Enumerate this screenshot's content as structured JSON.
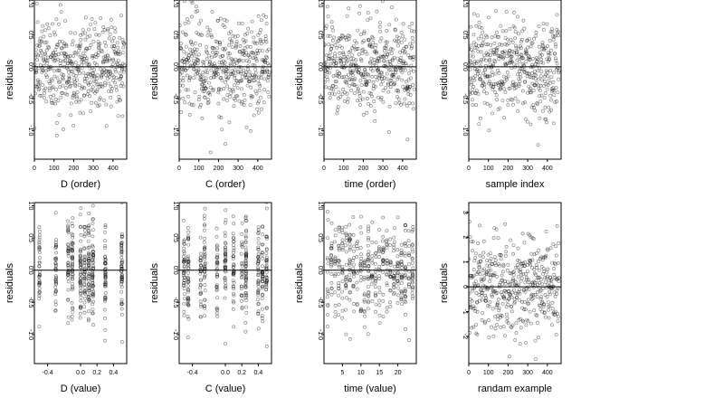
{
  "chart_data": [
    {
      "type": "scatter",
      "xlabel": "D (order)",
      "ylabel": "residuals",
      "x_range": [
        0,
        470
      ],
      "ylim": [
        -1.45,
        1.05
      ],
      "xticks": [
        0,
        100,
        200,
        300,
        400
      ],
      "xtick_labels": [
        "0",
        "100",
        "200",
        "300",
        "400"
      ],
      "yticks": [
        1.0,
        0.5,
        0.0,
        -0.5,
        -1.0
      ],
      "ytick_labels": [
        "1.0",
        "0.5",
        "0.0",
        "-0.5",
        "-1.0"
      ],
      "reference_line_y": 0,
      "n_points": 460,
      "y_spread": 0.38,
      "x_pattern": "index",
      "grid": false
    },
    {
      "type": "scatter",
      "xlabel": "C (order)",
      "ylabel": "residuals",
      "x_range": [
        0,
        470
      ],
      "ylim": [
        -1.45,
        1.05
      ],
      "xticks": [
        0,
        100,
        200,
        300,
        400
      ],
      "xtick_labels": [
        "0",
        "100",
        "200",
        "300",
        "400"
      ],
      "yticks": [
        1.0,
        0.5,
        0.0,
        -0.5,
        -1.0
      ],
      "ytick_labels": [
        "1.0",
        "0.5",
        "0.0",
        "-0.5",
        "-1.0"
      ],
      "reference_line_y": 0,
      "n_points": 460,
      "y_spread": 0.38,
      "x_pattern": "index",
      "grid": false
    },
    {
      "type": "scatter",
      "xlabel": "time (order)",
      "ylabel": "residuals",
      "x_range": [
        0,
        470
      ],
      "ylim": [
        -1.45,
        1.05
      ],
      "xticks": [
        0,
        100,
        200,
        300,
        400
      ],
      "xtick_labels": [
        "0",
        "100",
        "200",
        "300",
        "400"
      ],
      "yticks": [
        1.0,
        0.5,
        0.0,
        -0.5,
        -1.0
      ],
      "ytick_labels": [
        "1.0",
        "0.5",
        "0.0",
        "-0.5",
        "-1.0"
      ],
      "reference_line_y": 0,
      "n_points": 460,
      "y_spread": 0.38,
      "x_pattern": "index",
      "grid": false
    },
    {
      "type": "scatter",
      "xlabel": "sample index",
      "ylabel": "residuals",
      "x_range": [
        0,
        470
      ],
      "ylim": [
        -1.45,
        1.05
      ],
      "xticks": [
        0,
        100,
        200,
        300,
        400
      ],
      "xtick_labels": [
        "0",
        "100",
        "200",
        "300",
        "400"
      ],
      "yticks": [
        1.0,
        0.5,
        0.0,
        -0.5,
        -1.0
      ],
      "ytick_labels": [
        "1.0",
        "0.5",
        "0.0",
        "-0.5",
        "-1.0"
      ],
      "reference_line_y": 0,
      "n_points": 460,
      "y_spread": 0.38,
      "x_pattern": "index",
      "grid": false
    },
    {
      "type": "scatter",
      "xlabel": "D (value)",
      "ylabel": "residuals",
      "x_range": [
        -0.56,
        0.56
      ],
      "ylim": [
        -1.45,
        1.05
      ],
      "xticks": [
        -0.4,
        0.0,
        0.2,
        0.4
      ],
      "xtick_labels": [
        "-0.4",
        "0.0",
        "0.2",
        "0.4"
      ],
      "yticks": [
        1.0,
        0.5,
        0.0,
        -0.5,
        -1.0
      ],
      "ytick_labels": [
        "1.0",
        "0.5",
        "0.0",
        "-0.5",
        "-1.0"
      ],
      "reference_line_y": 0,
      "n_points": 460,
      "y_spread": 0.38,
      "x_pattern": "levels",
      "x_levels": [
        -0.5,
        -0.3,
        -0.15,
        -0.1,
        0.0,
        0.05,
        0.1,
        0.15,
        0.3,
        0.5
      ],
      "grid": false
    },
    {
      "type": "scatter",
      "xlabel": "C (value)",
      "ylabel": "residuals",
      "x_range": [
        -0.56,
        0.56
      ],
      "ylim": [
        -1.45,
        1.05
      ],
      "xticks": [
        -0.4,
        0.0,
        0.2,
        0.4
      ],
      "xtick_labels": [
        "-0.4",
        "0.0",
        "0.2",
        "0.4"
      ],
      "yticks": [
        1.0,
        0.5,
        0.0,
        -0.5,
        -1.0
      ],
      "ytick_labels": [
        "1.0",
        "0.5",
        "0.0",
        "-0.5",
        "-1.0"
      ],
      "reference_line_y": 0,
      "n_points": 460,
      "y_spread": 0.38,
      "x_pattern": "levels",
      "x_levels": [
        -0.5,
        -0.45,
        -0.3,
        -0.25,
        -0.1,
        0.0,
        0.1,
        0.2,
        0.25,
        0.4,
        0.45,
        0.5
      ],
      "grid": false
    },
    {
      "type": "scatter",
      "xlabel": "time (value)",
      "ylabel": "residuals",
      "x_range": [
        0,
        25
      ],
      "ylim": [
        -1.45,
        1.05
      ],
      "xticks": [
        5,
        10,
        15,
        20
      ],
      "xtick_labels": [
        "5",
        "10",
        "15",
        "20"
      ],
      "yticks": [
        1.0,
        0.5,
        0.0,
        -0.5,
        -1.0
      ],
      "ytick_labels": [
        "1.0",
        "0.5",
        "0.0",
        "-0.5",
        "-1.0"
      ],
      "reference_line_y": 0,
      "n_points": 460,
      "y_spread": 0.38,
      "x_pattern": "levels",
      "x_levels": [
        1,
        2,
        3,
        4,
        5,
        6,
        7,
        8,
        9,
        10,
        11,
        12,
        13,
        14,
        15,
        16,
        17,
        18,
        19,
        20,
        21,
        22,
        23,
        24
      ],
      "grid": false
    },
    {
      "type": "scatter",
      "xlabel": "randam example",
      "ylabel": "residuals",
      "x_range": [
        0,
        470
      ],
      "ylim": [
        -3.1,
        3.4
      ],
      "xticks": [
        0,
        100,
        200,
        300,
        400
      ],
      "xtick_labels": [
        "0",
        "100",
        "200",
        "300",
        "400"
      ],
      "yticks": [
        3,
        2,
        1,
        0,
        -1,
        -2
      ],
      "ytick_labels": [
        "3",
        "2",
        "1",
        "0",
        "-1",
        "-2"
      ],
      "reference_line_y": 0,
      "n_points": 460,
      "y_spread": 1.0,
      "x_pattern": "index",
      "grid": false
    }
  ]
}
